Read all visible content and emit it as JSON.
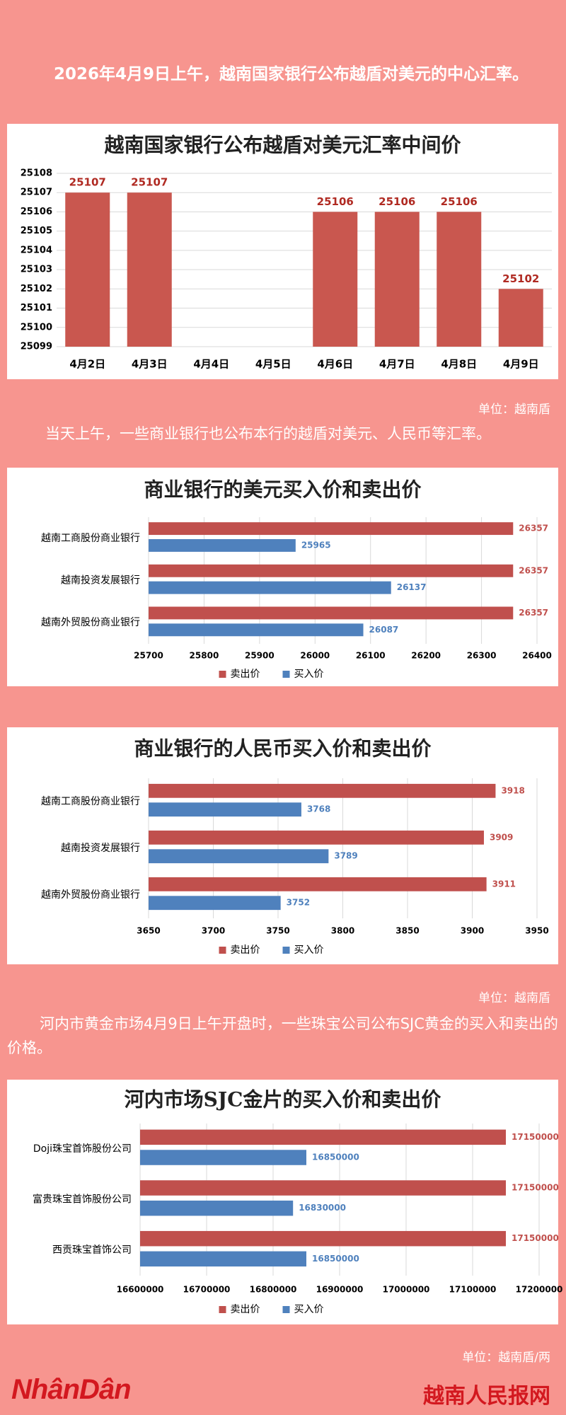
{
  "texts": {
    "intro1": "2026年4月9日上午，越南国家银行公布越盾对美元的中心汇率。",
    "unit1": "单位：越南盾",
    "intro2": "当天上午，一些商业银行也公布本行的越盾对美元、人民币等汇率。",
    "unit2": "单位：越南盾",
    "intro3": "河内市黄金市场4月9日上午开盘时，一些珠宝公司公布SJC黄金的买入和卖出的价格。",
    "unit3": "单位：越南盾/两",
    "logo": "NhânDân",
    "site": "越南人民报网"
  },
  "chart_data": [
    {
      "type": "bar",
      "title": "越南国家银行公布越盾对美元汇率中间价",
      "categories": [
        "4月2日",
        "4月3日",
        "4月4日",
        "4月5日",
        "4月6日",
        "4月7日",
        "4月8日",
        "4月9日"
      ],
      "values": [
        25107,
        25107,
        null,
        null,
        25106,
        25106,
        25106,
        25102
      ],
      "color": "#c9574f",
      "ylim": [
        25099,
        25108
      ],
      "yticks": [
        25099,
        25100,
        25101,
        25102,
        25103,
        25104,
        25105,
        25106,
        25107,
        25108
      ],
      "grid": true
    },
    {
      "type": "hbar",
      "title": "商业银行的美元买入价和卖出价",
      "categories": [
        "越南工商股份商业银行",
        "越南投资发展银行",
        "越南外贸股份商业银行"
      ],
      "series": [
        {
          "name": "卖出价",
          "color": "#c0504d",
          "values": [
            26357,
            26357,
            26357
          ]
        },
        {
          "name": "买入价",
          "color": "#4f81bd",
          "values": [
            25965,
            26137,
            26087
          ]
        }
      ],
      "xlim": [
        25700,
        26400
      ],
      "xticks": [
        25700,
        25800,
        25900,
        26000,
        26100,
        26200,
        26300,
        26400
      ],
      "grid": true,
      "legend": "bottom"
    },
    {
      "type": "hbar",
      "title": "商业银行的人民币买入价和卖出价",
      "categories": [
        "越南工商股份商业银行",
        "越南投资发展银行",
        "越南外贸股份商业银行"
      ],
      "series": [
        {
          "name": "卖出价",
          "color": "#c0504d",
          "values": [
            3918,
            3909,
            3911
          ]
        },
        {
          "name": "买入价",
          "color": "#4f81bd",
          "values": [
            3768,
            3789,
            3752
          ]
        }
      ],
      "xlim": [
        3650,
        3950
      ],
      "xticks": [
        3650,
        3700,
        3750,
        3800,
        3850,
        3900,
        3950
      ],
      "grid": true,
      "legend": "bottom"
    },
    {
      "type": "hbar",
      "title": "河内市场SJC金片的买入价和卖出价",
      "categories": [
        "Doji珠宝首饰股份公司",
        "富贵珠宝首饰股份公司",
        "西贡珠宝首饰公司"
      ],
      "series": [
        {
          "name": "卖出价",
          "color": "#c0504d",
          "values": [
            17150000,
            17150000,
            17150000
          ]
        },
        {
          "name": "买入价",
          "color": "#4f81bd",
          "values": [
            16850000,
            16830000,
            16850000
          ]
        }
      ],
      "xlim": [
        16600000,
        17200000
      ],
      "xticks": [
        16600000,
        16700000,
        16800000,
        16900000,
        17000000,
        17100000,
        17200000
      ],
      "grid": true,
      "legend": "bottom"
    }
  ]
}
